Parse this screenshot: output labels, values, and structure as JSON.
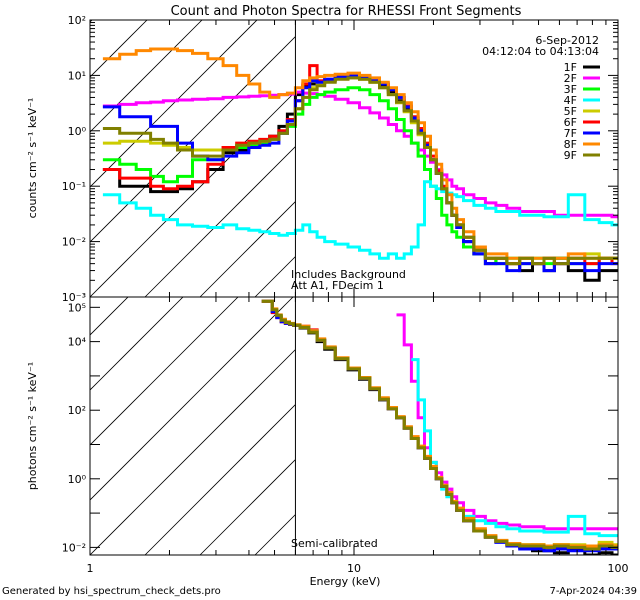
{
  "chart_data": [
    {
      "type": "line",
      "panel": "top",
      "title": "Count and Photon Spectra for RHESSI Front Segments",
      "xlabel": "",
      "ylabel": "counts cm⁻² s⁻¹ keV⁻¹",
      "xscale": "log",
      "yscale": "log",
      "xlim": [
        1,
        100
      ],
      "ylim": [
        0.001,
        100
      ],
      "y_ticks": [
        "10²",
        "10¹",
        "10⁰",
        "10⁻¹",
        "10⁻²",
        "10⁻³"
      ],
      "y_tick_values": [
        100,
        10,
        1,
        0.1,
        0.01,
        0.001
      ],
      "date": "6-Sep-2012",
      "time_range": "04:12:04 to 04:13:04",
      "annotations": [
        "Includes Background",
        "Att A1, FDecim 1"
      ],
      "vertical_line_x": 6,
      "legend_position": "top-right",
      "x": [
        1.2,
        1.4,
        1.6,
        1.8,
        2.0,
        2.3,
        2.6,
        3.0,
        3.4,
        3.8,
        4.2,
        4.6,
        5.0,
        5.4,
        5.8,
        6.2,
        6.6,
        7,
        7.5,
        8,
        9,
        10,
        11,
        12,
        13,
        14,
        15,
        16,
        17,
        18,
        19,
        20,
        21,
        22,
        23,
        24,
        25,
        27,
        30,
        33,
        36,
        40,
        45,
        50,
        55,
        60,
        70,
        80,
        90,
        100
      ],
      "series": [
        {
          "name": "1F",
          "color": "#000000",
          "values": [
            0.2,
            0.1,
            0.1,
            0.08,
            0.08,
            0.09,
            0.12,
            0.2,
            0.4,
            0.45,
            0.5,
            0.6,
            0.8,
            1.2,
            2.0,
            4.5,
            6.5,
            7,
            7.5,
            8,
            9,
            9.5,
            9,
            8,
            6.5,
            5,
            3.5,
            2.4,
            1.5,
            0.9,
            0.5,
            0.3,
            0.17,
            0.09,
            0.05,
            0.03,
            0.02,
            0.01,
            0.006,
            0.004,
            0.005,
            0.004,
            0.003,
            0.004,
            0.003,
            0.005,
            0.003,
            0.002,
            0.003,
            0.003
          ]
        },
        {
          "name": "2F",
          "color": "#ff00ff",
          "values": [
            2.8,
            3.0,
            3.2,
            3.3,
            3.5,
            3.6,
            3.7,
            3.8,
            4.0,
            4.1,
            4.2,
            4.3,
            4.4,
            4.5,
            4.6,
            5.0,
            4.8,
            4.7,
            4.5,
            4.2,
            3.7,
            3.2,
            2.6,
            2.1,
            1.7,
            1.3,
            1.0,
            0.8,
            0.6,
            0.45,
            0.35,
            0.27,
            0.2,
            0.16,
            0.13,
            0.1,
            0.09,
            0.07,
            0.06,
            0.05,
            0.045,
            0.04,
            0.035,
            0.035,
            0.035,
            0.03,
            0.03,
            0.03,
            0.03,
            0.028
          ]
        },
        {
          "name": "3F",
          "color": "#00ff00",
          "values": [
            0.3,
            0.25,
            0.2,
            0.15,
            0.12,
            0.15,
            0.3,
            0.3,
            0.45,
            0.5,
            0.55,
            0.6,
            0.7,
            0.9,
            1.2,
            2.0,
            3.0,
            4,
            4.5,
            5,
            5.5,
            6,
            5.5,
            4.5,
            3.5,
            2.5,
            1.6,
            1.0,
            0.6,
            0.35,
            0.2,
            0.1,
            0.06,
            0.03,
            0.02,
            0.015,
            0.012,
            0.008,
            0.006,
            0.005,
            0.004,
            0.005,
            0.004,
            0.005,
            0.004,
            0.005,
            0.004,
            0.004,
            0.005,
            0.005
          ]
        },
        {
          "name": "4F",
          "color": "#00ffff",
          "values": [
            0.07,
            0.05,
            0.04,
            0.03,
            0.025,
            0.02,
            0.019,
            0.018,
            0.02,
            0.017,
            0.016,
            0.015,
            0.014,
            0.013,
            0.014,
            0.016,
            0.02,
            0.015,
            0.012,
            0.01,
            0.009,
            0.008,
            0.007,
            0.006,
            0.005,
            0.006,
            0.005,
            0.006,
            0.008,
            0.02,
            0.12,
            0.1,
            0.09,
            0.08,
            0.075,
            0.07,
            0.065,
            0.055,
            0.045,
            0.04,
            0.035,
            0.035,
            0.03,
            0.03,
            0.028,
            0.028,
            0.07,
            0.025,
            0.022,
            0.02
          ]
        },
        {
          "name": "5F",
          "color": "#cccc00",
          "values": [
            0.6,
            0.65,
            0.65,
            0.6,
            0.55,
            0.5,
            0.45,
            0.45,
            0.5,
            0.55,
            0.6,
            0.65,
            0.7,
            0.9,
            1.3,
            2.5,
            4.0,
            6,
            7,
            8,
            9,
            9,
            8.5,
            7.5,
            6,
            4.5,
            3.2,
            2.2,
            1.4,
            0.85,
            0.5,
            0.3,
            0.17,
            0.09,
            0.05,
            0.03,
            0.02,
            0.012,
            0.007,
            0.005,
            0.005,
            0.004,
            0.005,
            0.004,
            0.005,
            0.004,
            0.005,
            0.006,
            0.005,
            0.005
          ]
        },
        {
          "name": "6F",
          "color": "#ff0000",
          "values": [
            0.2,
            0.14,
            0.14,
            0.1,
            0.09,
            0.1,
            0.12,
            0.25,
            0.5,
            0.6,
            0.65,
            0.7,
            0.8,
            1.0,
            1.6,
            3.5,
            7,
            15,
            8,
            8.5,
            10,
            10,
            9.5,
            8.5,
            7,
            5.5,
            4,
            2.8,
            1.8,
            1.1,
            0.6,
            0.35,
            0.19,
            0.1,
            0.05,
            0.03,
            0.02,
            0.012,
            0.007,
            0.005,
            0.005,
            0.004,
            0.005,
            0.004,
            0.005,
            0.004,
            0.005,
            0.004,
            0.005,
            0.004
          ]
        },
        {
          "name": "7F",
          "color": "#0000ff",
          "values": [
            2.7,
            1.8,
            1.8,
            1.2,
            1.2,
            0.6,
            0.35,
            0.3,
            0.35,
            0.4,
            0.5,
            0.55,
            0.6,
            0.9,
            1.5,
            3.5,
            6,
            8,
            7.5,
            8.5,
            9.5,
            10,
            9.5,
            8.5,
            7,
            5.5,
            4,
            2.7,
            1.7,
            1.0,
            0.55,
            0.3,
            0.17,
            0.09,
            0.05,
            0.03,
            0.018,
            0.01,
            0.006,
            0.004,
            0.004,
            0.003,
            0.004,
            0.004,
            0.003,
            0.004,
            0.004,
            0.003,
            0.004,
            0.004
          ]
        },
        {
          "name": "8F",
          "color": "#ff8800",
          "values": [
            20,
            24,
            28,
            30,
            30,
            28,
            25,
            20,
            15,
            10,
            7,
            5,
            4,
            4.5,
            4.8,
            6,
            8,
            9,
            9.5,
            10,
            10.5,
            11,
            10,
            9,
            7.5,
            6,
            4.5,
            3.2,
            2.2,
            1.4,
            0.8,
            0.45,
            0.25,
            0.13,
            0.07,
            0.04,
            0.025,
            0.015,
            0.008,
            0.006,
            0.006,
            0.005,
            0.005,
            0.005,
            0.005,
            0.005,
            0.006,
            0.005,
            0.005,
            0.005
          ]
        },
        {
          "name": "9F",
          "color": "#808000",
          "values": [
            1.1,
            0.9,
            0.9,
            0.7,
            0.6,
            0.45,
            0.35,
            0.35,
            0.45,
            0.55,
            0.6,
            0.65,
            0.7,
            0.9,
            1.3,
            2.5,
            4,
            5.5,
            6.5,
            7.5,
            8.5,
            9,
            8.5,
            7.5,
            6,
            4.5,
            3.3,
            2.3,
            1.5,
            0.9,
            0.5,
            0.3,
            0.17,
            0.09,
            0.05,
            0.03,
            0.02,
            0.012,
            0.007,
            0.005,
            0.005,
            0.004,
            0.005,
            0.004,
            0.005,
            0.004,
            0.005,
            0.005,
            0.005,
            0.005
          ]
        }
      ]
    },
    {
      "type": "line",
      "panel": "bottom",
      "xlabel": "Energy (keV)",
      "ylabel": "photons cm⁻² s⁻¹ keV⁻¹",
      "xscale": "log",
      "yscale": "log",
      "xlim": [
        1,
        100
      ],
      "ylim": [
        0.006,
        200000
      ],
      "x_ticks": [
        "1",
        "10",
        "100"
      ],
      "x_tick_values": [
        1,
        10,
        100
      ],
      "y_ticks": [
        "10⁵",
        "10⁴",
        "10²",
        "10⁰",
        "10⁻²"
      ],
      "y_tick_values": [
        100000,
        10000,
        100,
        1,
        0.01
      ],
      "annotations": [
        "Semi-calibrated"
      ],
      "vertical_line_x": 6,
      "x": [
        4.8,
        5.0,
        5.2,
        5.4,
        5.6,
        5.8,
        6.0,
        6.5,
        7,
        7.5,
        8,
        9,
        10,
        11,
        12,
        13,
        14,
        15,
        16,
        17,
        18,
        19,
        20,
        21,
        22,
        23,
        24,
        25,
        27,
        30,
        33,
        36,
        40,
        45,
        50,
        55,
        60,
        70,
        80,
        90,
        100
      ],
      "series": [
        {
          "name": "1F",
          "color": "#000000",
          "values": [
            150000,
            80000,
            55000,
            40000,
            35000,
            32000,
            30000,
            25000,
            18000,
            10000,
            6000,
            3000,
            1500,
            800,
            400,
            200,
            110,
            60,
            30,
            15,
            8,
            4,
            2,
            1,
            0.6,
            0.35,
            0.2,
            0.12,
            0.06,
            0.03,
            0.02,
            0.015,
            0.012,
            0.01,
            0.008,
            0.008,
            0.007,
            0.009,
            0.006,
            0.007,
            0.006
          ]
        },
        {
          "name": "2F",
          "color": "#ff00ff",
          "values": [
            null,
            null,
            null,
            null,
            null,
            null,
            null,
            null,
            null,
            null,
            null,
            null,
            null,
            null,
            null,
            null,
            null,
            60000,
            8000,
            700,
            60,
            8,
            3,
            1.5,
            0.8,
            0.5,
            0.3,
            0.2,
            0.12,
            0.08,
            0.06,
            0.05,
            0.045,
            0.04,
            0.04,
            0.035,
            0.035,
            0.035,
            0.035,
            0.035,
            0.035
          ]
        },
        {
          "name": "3F",
          "color": "#00ff00",
          "values": [
            150000,
            80000,
            55000,
            40000,
            35000,
            32000,
            30000,
            27000,
            20000,
            11000,
            6500,
            3200,
            1600,
            850,
            420,
            210,
            110,
            60,
            30,
            15,
            8,
            4,
            2,
            1,
            0.6,
            0.35,
            0.2,
            0.12,
            0.06,
            0.03,
            0.02,
            0.015,
            0.013,
            0.012,
            0.012,
            0.011,
            0.012,
            0.011,
            0.01,
            0.012,
            0.01
          ]
        },
        {
          "name": "4F",
          "color": "#00ffff",
          "values": [
            null,
            null,
            null,
            null,
            null,
            null,
            null,
            null,
            null,
            null,
            null,
            null,
            null,
            null,
            null,
            null,
            null,
            null,
            null,
            3000,
            200,
            25,
            3,
            1,
            0.5,
            0.3,
            0.2,
            0.13,
            0.08,
            0.06,
            0.05,
            0.04,
            0.035,
            0.03,
            0.03,
            0.028,
            0.028,
            0.08,
            0.025,
            0.022,
            0.022
          ]
        },
        {
          "name": "5F",
          "color": "#cccc00",
          "values": [
            150000,
            80000,
            55000,
            40000,
            35000,
            32000,
            30000,
            26000,
            19000,
            11000,
            6500,
            3200,
            1600,
            850,
            420,
            210,
            110,
            60,
            30,
            15,
            8,
            4,
            2,
            1,
            0.6,
            0.35,
            0.2,
            0.12,
            0.06,
            0.03,
            0.02,
            0.015,
            0.012,
            0.011,
            0.012,
            0.01,
            0.012,
            0.012,
            0.01,
            0.014,
            0.012
          ]
        },
        {
          "name": "6F",
          "color": "#ff0000",
          "values": [
            150000,
            70000,
            50000,
            38000,
            34000,
            32000,
            30000,
            28000,
            22000,
            11000,
            6500,
            3200,
            1600,
            850,
            420,
            210,
            110,
            60,
            30,
            15,
            8,
            4,
            2,
            1,
            0.6,
            0.35,
            0.2,
            0.12,
            0.06,
            0.03,
            0.02,
            0.015,
            0.012,
            0.011,
            0.01,
            0.01,
            0.01,
            0.01,
            0.009,
            0.01,
            0.01
          ]
        },
        {
          "name": "7F",
          "color": "#0000ff",
          "values": [
            150000,
            75000,
            50000,
            38000,
            34000,
            32000,
            30000,
            27000,
            21000,
            11000,
            6500,
            3200,
            1600,
            850,
            420,
            210,
            110,
            60,
            30,
            15,
            8,
            4,
            2,
            1,
            0.6,
            0.35,
            0.2,
            0.12,
            0.06,
            0.03,
            0.02,
            0.014,
            0.011,
            0.009,
            0.009,
            0.008,
            0.009,
            0.008,
            0.008,
            0.009,
            0.009
          ]
        },
        {
          "name": "8F",
          "color": "#ff8800",
          "values": [
            150000,
            90000,
            60000,
            45000,
            38000,
            34000,
            31000,
            28000,
            21000,
            12000,
            7000,
            3400,
            1700,
            900,
            450,
            230,
            120,
            65,
            33,
            17,
            9,
            4.5,
            2.3,
            1.1,
            0.65,
            0.4,
            0.22,
            0.14,
            0.07,
            0.035,
            0.022,
            0.016,
            0.013,
            0.012,
            0.012,
            0.011,
            0.012,
            0.011,
            0.011,
            0.012,
            0.011
          ]
        },
        {
          "name": "9F",
          "color": "#808000",
          "values": [
            150000,
            85000,
            58000,
            42000,
            36000,
            33000,
            30000,
            26000,
            19000,
            11000,
            6500,
            3200,
            1600,
            850,
            420,
            210,
            110,
            60,
            30,
            15,
            8,
            4,
            2,
            1,
            0.6,
            0.35,
            0.2,
            0.12,
            0.06,
            0.03,
            0.02,
            0.015,
            0.012,
            0.011,
            0.011,
            0.01,
            0.011,
            0.01,
            0.009,
            0.011,
            0.01
          ]
        }
      ]
    }
  ],
  "footer": {
    "generated_by": "Generated by hsi_spectrum_check_dets.pro",
    "timestamp": "7-Apr-2024 04:39"
  }
}
